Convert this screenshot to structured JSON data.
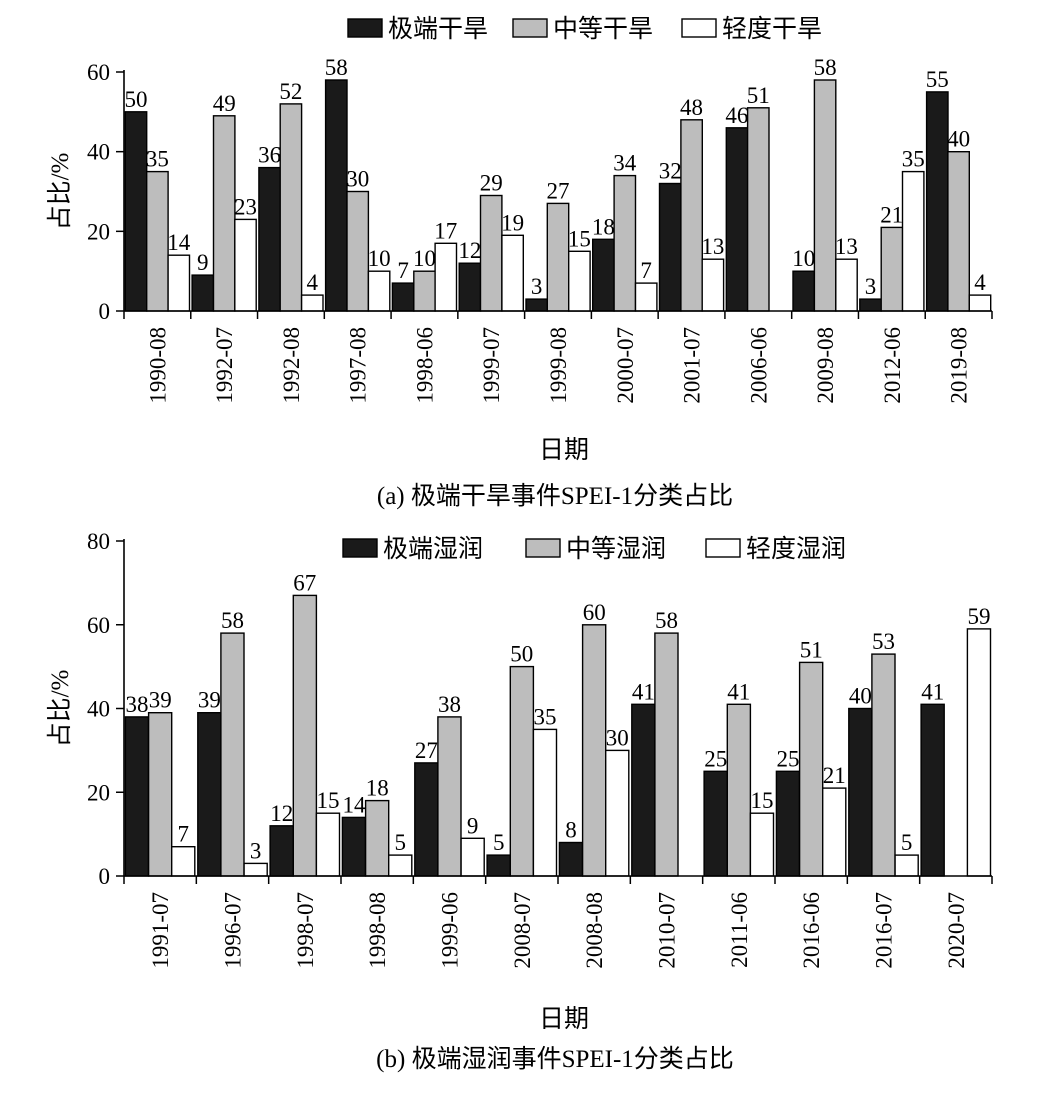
{
  "chart_data": [
    {
      "type": "bar",
      "caption": "(a) 极端干旱事件SPEI-1分类占比",
      "xlabel": "日期",
      "ylabel": "占比/%",
      "ylim": [
        0,
        60
      ],
      "yticks": [
        0,
        20,
        40,
        60
      ],
      "grid": false,
      "legend_position": "top",
      "categories": [
        "1990-08",
        "1992-07",
        "1992-08",
        "1997-08",
        "1998-06",
        "1999-07",
        "1999-08",
        "2000-07",
        "2001-07",
        "2006-06",
        "2009-08",
        "2012-06",
        "2019-08"
      ],
      "series": [
        {
          "name": "极端干旱",
          "color": "#1a1a1a",
          "values": [
            50,
            9,
            36,
            58,
            7,
            12,
            3,
            18,
            32,
            46,
            10,
            3,
            55
          ]
        },
        {
          "name": "中等干旱",
          "color": "#bdbdbd",
          "values": [
            35,
            49,
            52,
            30,
            10,
            29,
            27,
            34,
            48,
            51,
            58,
            21,
            40
          ]
        },
        {
          "name": "轻度干旱",
          "color": "#ffffff",
          "values": [
            14,
            23,
            4,
            10,
            17,
            19,
            15,
            7,
            13,
            0,
            13,
            35,
            4
          ]
        }
      ],
      "value_labels": [
        [
          "50",
          "9",
          "36",
          "58",
          "7",
          "12",
          "3",
          "18",
          "32",
          "46",
          "10",
          "3",
          "55"
        ],
        [
          "35",
          "49",
          "52",
          "30",
          "10",
          "29",
          "27",
          "34",
          "48",
          "51",
          "58",
          "21",
          "40"
        ],
        [
          "14",
          "23",
          "4",
          "10",
          "17",
          "19",
          "15",
          "7",
          "13",
          "",
          "13",
          "35",
          "4"
        ]
      ]
    },
    {
      "type": "bar",
      "caption": "(b) 极端湿润事件SPEI-1分类占比",
      "xlabel": "日期",
      "ylabel": "占比/%",
      "ylim": [
        0,
        80
      ],
      "yticks": [
        0,
        20,
        40,
        60,
        80
      ],
      "grid": false,
      "legend_position": "top",
      "categories": [
        "1991-07",
        "1996-07",
        "1998-07",
        "1998-08",
        "1999-06",
        "2008-07",
        "2008-08",
        "2010-07",
        "2011-06",
        "2016-06",
        "2016-07",
        "2020-07"
      ],
      "series": [
        {
          "name": "极端湿润",
          "color": "#1a1a1a",
          "values": [
            38,
            39,
            12,
            14,
            27,
            5,
            8,
            41,
            25,
            25,
            40,
            41
          ]
        },
        {
          "name": "中等湿润",
          "color": "#bdbdbd",
          "values": [
            39,
            58,
            67,
            18,
            38,
            50,
            60,
            58,
            41,
            51,
            53,
            0
          ]
        },
        {
          "name": "轻度湿润",
          "color": "#ffffff",
          "values": [
            7,
            3,
            15,
            5,
            9,
            35,
            30,
            0,
            15,
            21,
            5,
            59
          ]
        }
      ],
      "value_labels": [
        [
          "38",
          "39",
          "12",
          "14",
          "27",
          "5",
          "8",
          "41",
          "25",
          "25",
          "40",
          "41"
        ],
        [
          "39",
          "58",
          "67",
          "18",
          "38",
          "50",
          "60",
          "58",
          "41",
          "51",
          "53",
          ""
        ],
        [
          "7",
          "3",
          "15",
          "5",
          "9",
          "35",
          "30",
          "",
          "15",
          "21",
          "5",
          "59"
        ]
      ]
    }
  ]
}
